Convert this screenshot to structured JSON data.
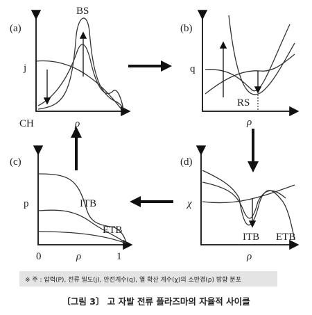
{
  "panels": [
    {
      "label": "(a)",
      "peak": "BS",
      "y_axis": "j",
      "corner": "CH",
      "x_axis": "ρ"
    },
    {
      "label": "(b)",
      "y_axis": "q",
      "marker": "RS",
      "x_axis": "ρ"
    },
    {
      "label": "(c)",
      "y_axis": "p",
      "inner": "ITB",
      "outer": "ETB",
      "x_start": "0",
      "x_axis": "ρ",
      "x_end": "1"
    },
    {
      "label": "(d)",
      "y_axis": "χ",
      "inner": "ITB",
      "outer": "ETB",
      "x_axis": "ρ"
    }
  ],
  "note": "※ 주 : 압력(P), 전류 밀도(j), 안전계수(q), 열 확산 계수(χ)의 소반경(ρ) 방향 분포",
  "caption": "〔그림 3〕 고 자발 전류 플라즈마의 자율적 사이클"
}
